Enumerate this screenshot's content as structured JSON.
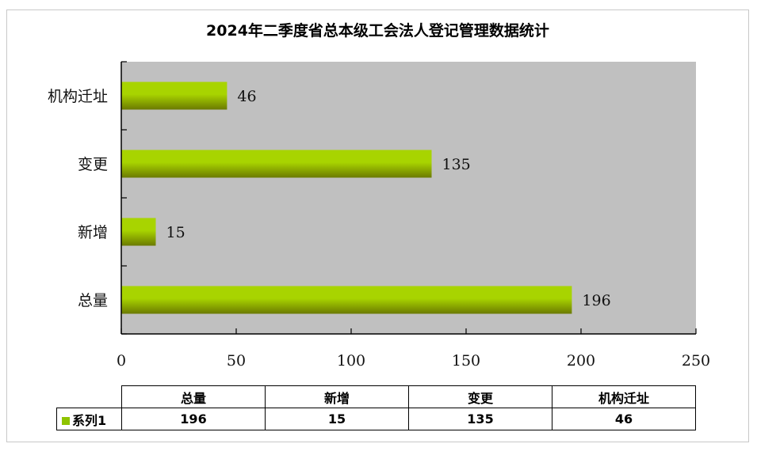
{
  "chart_data": {
    "type": "bar",
    "orientation": "horizontal",
    "title": "2024年二季度省总本级工会法人登记管理数据统计",
    "categories": [
      "总量",
      "新增",
      "变更",
      "机构迁址"
    ],
    "series": [
      {
        "name": "系列1",
        "values": [
          196,
          15,
          135,
          46
        ]
      }
    ],
    "xlim": [
      0,
      250
    ],
    "x_ticks": [
      "0",
      "50",
      "100",
      "150",
      "200",
      "250"
    ],
    "grid": false,
    "data_table": true,
    "colors": {
      "bar_top": "#a8d400",
      "bar_bottom": "#6b7a00",
      "plot_bg": "#c0c0c0",
      "legend": "#8fc400"
    }
  }
}
